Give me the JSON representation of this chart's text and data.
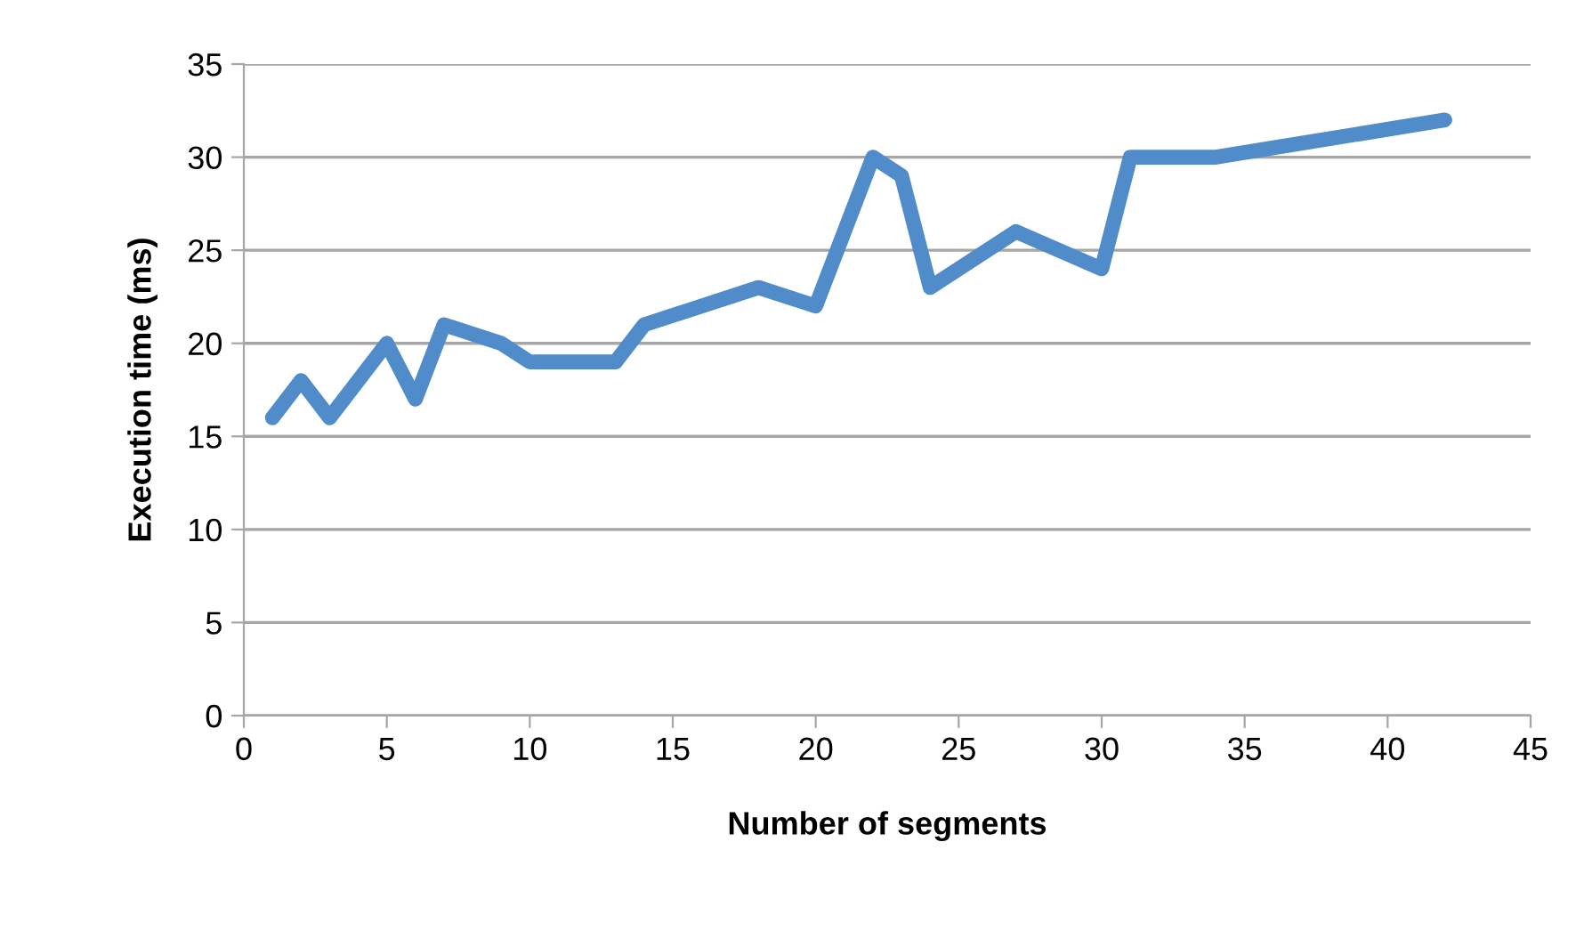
{
  "chart_data": {
    "type": "line",
    "xlabel": "Number of segments",
    "ylabel": "Execution time (ms)",
    "x": [
      1,
      2,
      3,
      5,
      6,
      7,
      9,
      10,
      13,
      14,
      18,
      20,
      22,
      23,
      24,
      27,
      30,
      31,
      34,
      42
    ],
    "series": [
      {
        "color": "#4f8cc9",
        "values": [
          16,
          18,
          16,
          20,
          17,
          21,
          20,
          19,
          19,
          21,
          23,
          22,
          30,
          29,
          23,
          26,
          24,
          30,
          30,
          32
        ]
      }
    ],
    "xlim": [
      0,
      45
    ],
    "xticks": [
      0,
      5,
      10,
      15,
      20,
      25,
      30,
      35,
      40,
      45
    ],
    "ylim": [
      0,
      35
    ],
    "yticks": [
      0,
      5,
      10,
      15,
      20,
      25,
      30,
      35
    ],
    "grid": "y",
    "legend": false,
    "marker": "none",
    "line_style": "solid"
  }
}
